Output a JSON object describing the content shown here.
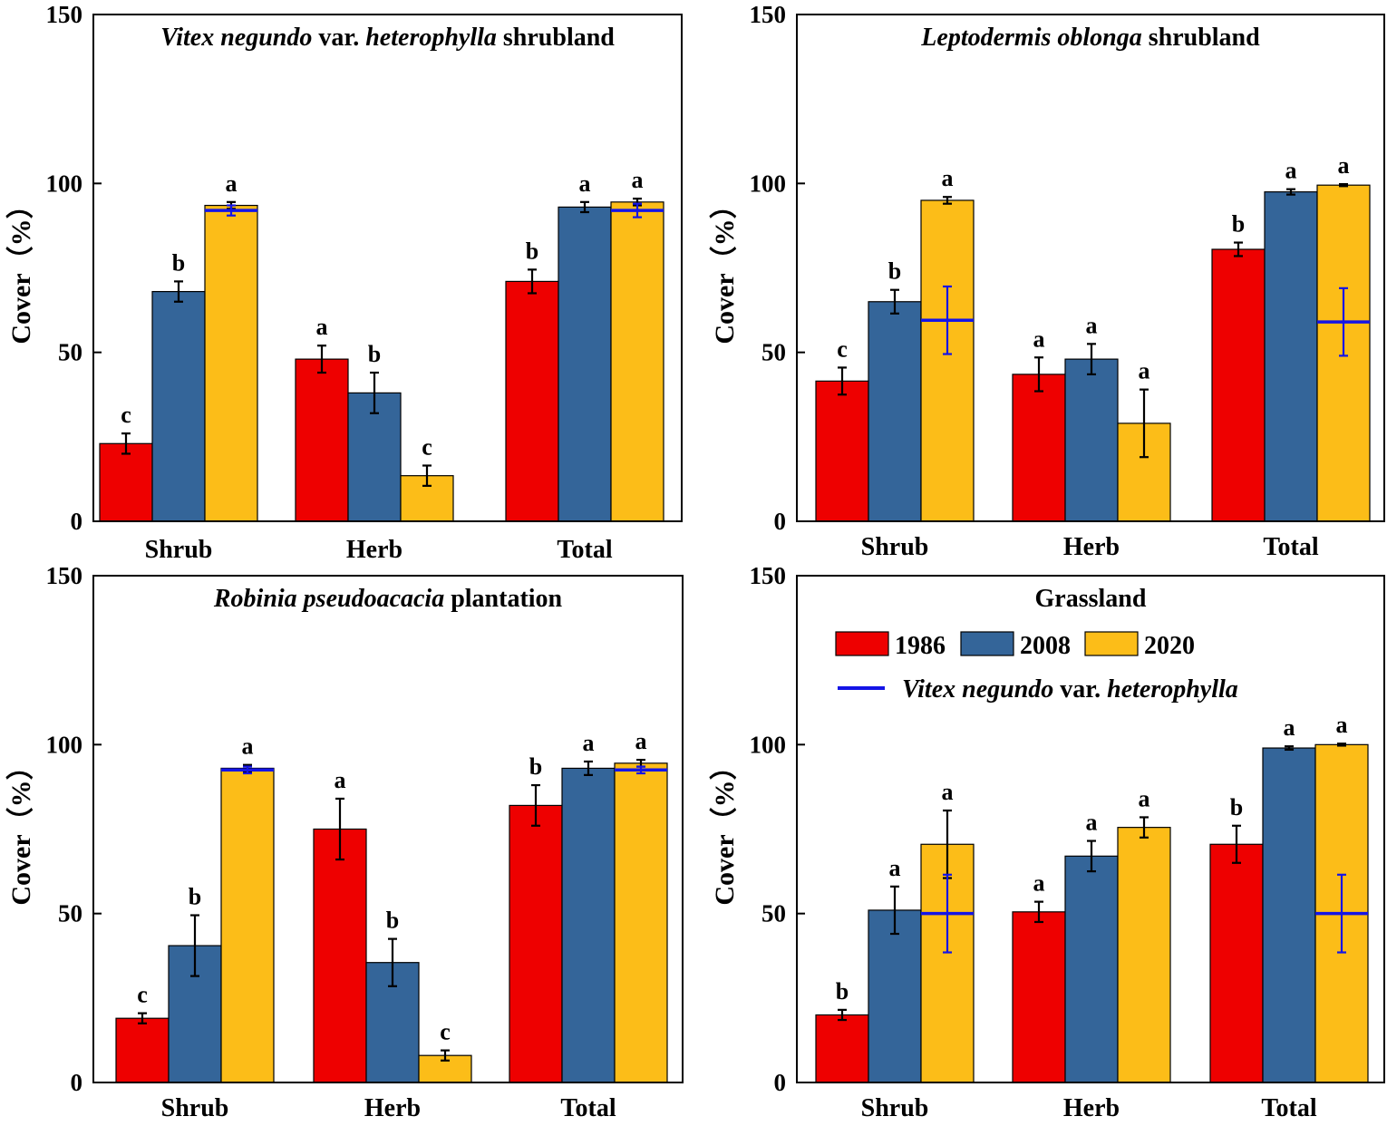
{
  "colors": {
    "y1986": "#ee0000",
    "y2008": "#346599",
    "y2020": "#fcbd18",
    "vitex": "#1414e6",
    "error": "#000000"
  },
  "legend": {
    "items": [
      {
        "label": "1986",
        "color": "#ee0000"
      },
      {
        "label": "2008",
        "color": "#346599"
      },
      {
        "label": "2020",
        "color": "#fcbd18"
      }
    ],
    "line_label_parts": [
      {
        "text": "Vitex negundo",
        "italic": true
      },
      {
        "text": " var. ",
        "italic": false
      },
      {
        "text": "heterophylla",
        "italic": true
      }
    ]
  },
  "chart_data": [
    {
      "type": "bar",
      "title_parts": [
        {
          "text": "Vitex negundo",
          "italic": true
        },
        {
          "text": " var. ",
          "italic": false
        },
        {
          "text": "heterophylla",
          "italic": true
        },
        {
          "text": " shrubland",
          "italic": false
        }
      ],
      "ylabel": "Cover（%）",
      "ylim": [
        0,
        150
      ],
      "yticks": [
        0,
        50,
        100,
        150
      ],
      "categories": [
        "Shrub",
        "Herb",
        "Total"
      ],
      "series": [
        {
          "name": "1986",
          "values": [
            23,
            48,
            71
          ],
          "errors": [
            3,
            4,
            3.5
          ],
          "sig": [
            "c",
            "a",
            "b"
          ]
        },
        {
          "name": "2008",
          "values": [
            68,
            38,
            93
          ],
          "errors": [
            3,
            6,
            1.5
          ],
          "sig": [
            "b",
            "b",
            "a"
          ]
        },
        {
          "name": "2020",
          "values": [
            93.5,
            13.5,
            94.5
          ],
          "errors": [
            1,
            3,
            1
          ],
          "sig": [
            "a",
            "c",
            "a"
          ]
        }
      ],
      "vitex": [
        {
          "category": "Shrub",
          "value": 92,
          "error": 1.5
        },
        {
          "category": "Total",
          "value": 92,
          "error": 2
        }
      ]
    },
    {
      "type": "bar",
      "title_parts": [
        {
          "text": "Leptodermis oblonga",
          "italic": true
        },
        {
          "text": " shrubland",
          "italic": false
        }
      ],
      "ylabel": "Cover（%）",
      "ylim": [
        0,
        150
      ],
      "yticks": [
        0,
        50,
        100,
        150
      ],
      "categories": [
        "Shrub",
        "Herb",
        "Total"
      ],
      "series": [
        {
          "name": "1986",
          "values": [
            41.5,
            43.5,
            80.5
          ],
          "errors": [
            4,
            5,
            2
          ],
          "sig": [
            "c",
            "a",
            "b"
          ]
        },
        {
          "name": "2008",
          "values": [
            65,
            48,
            97.5
          ],
          "errors": [
            3.5,
            4.5,
            0.8
          ],
          "sig": [
            "b",
            "a",
            "a"
          ]
        },
        {
          "name": "2020",
          "values": [
            95,
            29,
            99.5
          ],
          "errors": [
            1,
            10,
            0.3
          ],
          "sig": [
            "a",
            "a",
            "a"
          ]
        }
      ],
      "vitex": [
        {
          "category": "Shrub",
          "value": 59.5,
          "error": 10
        },
        {
          "category": "Total",
          "value": 59,
          "error": 10
        }
      ]
    },
    {
      "type": "bar",
      "title_parts": [
        {
          "text": "Robinia pseudoacacia",
          "italic": true
        },
        {
          "text": " plantation",
          "italic": false
        }
      ],
      "ylabel": "Cover（%）",
      "ylim": [
        0,
        150
      ],
      "yticks": [
        0,
        50,
        100,
        150
      ],
      "categories": [
        "Shrub",
        "Herb",
        "Total"
      ],
      "series": [
        {
          "name": "1986",
          "values": [
            19,
            75,
            82
          ],
          "errors": [
            1.5,
            9,
            6
          ],
          "sig": [
            "c",
            "a",
            "b"
          ]
        },
        {
          "name": "2008",
          "values": [
            40.5,
            35.5,
            93
          ],
          "errors": [
            9,
            7,
            2
          ],
          "sig": [
            "b",
            "b",
            "a"
          ]
        },
        {
          "name": "2020",
          "values": [
            93,
            8,
            94.5
          ],
          "errors": [
            1,
            1.5,
            1
          ],
          "sig": [
            "a",
            "c",
            "a"
          ]
        }
      ],
      "vitex": [
        {
          "category": "Shrub",
          "value": 92.5,
          "error": 1
        },
        {
          "category": "Total",
          "value": 92.5,
          "error": 1
        }
      ]
    },
    {
      "type": "bar",
      "title_parts": [
        {
          "text": "Grassland",
          "italic": false
        }
      ],
      "ylabel": "Cover（%）",
      "ylim": [
        0,
        150
      ],
      "yticks": [
        0,
        50,
        100,
        150
      ],
      "categories": [
        "Shrub",
        "Herb",
        "Total"
      ],
      "series": [
        {
          "name": "1986",
          "values": [
            20,
            50.5,
            70.5
          ],
          "errors": [
            1.5,
            3,
            5.5
          ],
          "sig": [
            "b",
            "a",
            "b"
          ]
        },
        {
          "name": "2008",
          "values": [
            51,
            67,
            99
          ],
          "errors": [
            7,
            4.5,
            0.5
          ],
          "sig": [
            "a",
            "a",
            "a"
          ]
        },
        {
          "name": "2020",
          "values": [
            70.5,
            75.5,
            100
          ],
          "errors": [
            10,
            3,
            0.3
          ],
          "sig": [
            "a",
            "a",
            "a"
          ]
        }
      ],
      "vitex": [
        {
          "category": "Shrub",
          "value": 50,
          "error": 11.5
        },
        {
          "category": "Total",
          "value": 50,
          "error": 11.5
        }
      ]
    }
  ]
}
